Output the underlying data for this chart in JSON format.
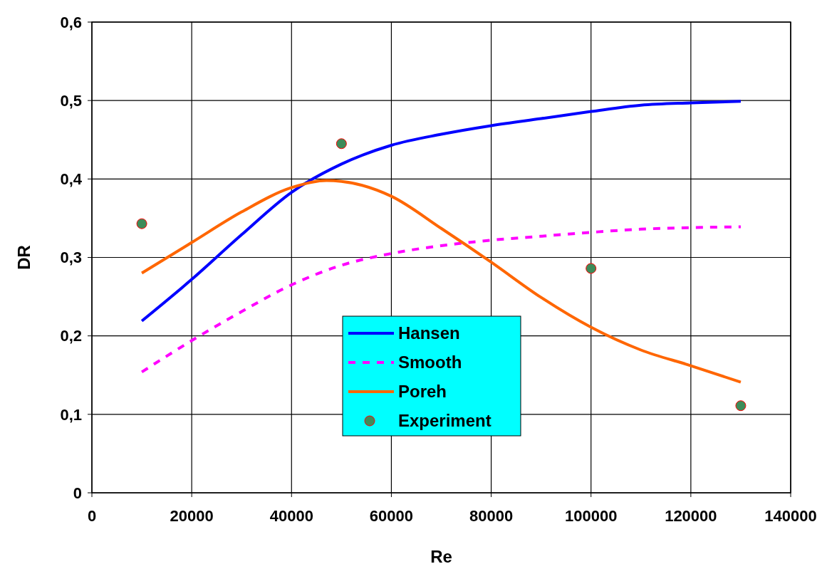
{
  "chart_data": {
    "type": "line",
    "xlabel": "Re",
    "ylabel": "DR",
    "xlim": [
      0,
      140000
    ],
    "ylim": [
      0,
      0.6
    ],
    "xticks": [
      0,
      20000,
      40000,
      60000,
      80000,
      100000,
      120000,
      140000
    ],
    "yticks": [
      0,
      {
        "value": 0.1,
        "label": "0,1"
      },
      {
        "value": 0.2,
        "label": "0,2"
      },
      {
        "value": 0.3,
        "label": "0,3"
      },
      {
        "value": 0.4,
        "label": "0,4"
      },
      {
        "value": 0.5,
        "label": "0,5"
      },
      {
        "value": 0.6,
        "label": "0,6"
      }
    ],
    "grid": true,
    "legend": "bottom",
    "series": [
      {
        "name": "Hansen",
        "color": "#0000ff",
        "line_style": "solid",
        "marker": "none",
        "x": [
          10000,
          20000,
          30000,
          40000,
          50000,
          60000,
          70000,
          80000,
          90000,
          100000,
          110000,
          120000,
          130000
        ],
        "values": [
          0.219,
          0.272,
          0.329,
          0.383,
          0.419,
          0.443,
          0.457,
          0.468,
          0.477,
          0.486,
          0.494,
          0.497,
          0.499
        ]
      },
      {
        "name": "Smooth",
        "color": "#ff00ff",
        "line_style": "dashed",
        "marker": "none",
        "x": [
          10000,
          20000,
          30000,
          40000,
          50000,
          60000,
          70000,
          80000,
          90000,
          100000,
          110000,
          120000,
          130000
        ],
        "values": [
          0.154,
          0.194,
          0.231,
          0.265,
          0.29,
          0.305,
          0.315,
          0.322,
          0.327,
          0.332,
          0.336,
          0.338,
          0.339
        ]
      },
      {
        "name": "Poreh",
        "color": "#ff6600",
        "line_style": "solid",
        "marker": "none",
        "x": [
          10000,
          20000,
          30000,
          40000,
          47000,
          50000,
          60000,
          70000,
          80000,
          90000,
          100000,
          110000,
          120000,
          130000
        ],
        "values": [
          0.28,
          0.319,
          0.358,
          0.389,
          0.398,
          0.397,
          0.378,
          0.337,
          0.294,
          0.249,
          0.211,
          0.182,
          0.162,
          0.141
        ]
      },
      {
        "name": "Experiment",
        "type": "scatter",
        "color": "#3c8c5a",
        "marker": "circle",
        "x": [
          10000,
          50000,
          100000,
          130000
        ],
        "values": [
          0.343,
          0.445,
          0.286,
          0.111
        ]
      }
    ]
  }
}
